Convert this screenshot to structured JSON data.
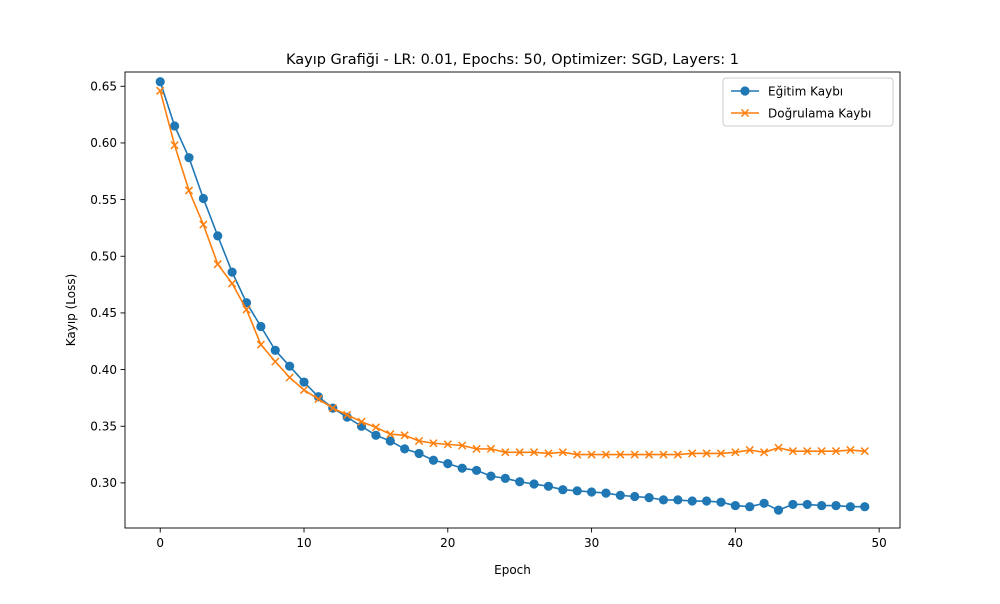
{
  "chart_data": {
    "type": "line",
    "title": "Kayıp Grafiği - LR: 0.01, Epochs: 50, Optimizer: SGD, Layers: 1",
    "xlabel": "Epoch",
    "ylabel": "Kayıp (Loss)",
    "xlim": [
      -2.45,
      51.45
    ],
    "ylim": [
      0.2602,
      0.6626
    ],
    "x_ticks": [
      "0",
      "10",
      "20",
      "30",
      "40",
      "50"
    ],
    "x_tick_values": [
      0,
      10,
      20,
      30,
      40,
      50
    ],
    "y_ticks": [
      "0.30",
      "0.35",
      "0.40",
      "0.45",
      "0.50",
      "0.55",
      "0.60",
      "0.65"
    ],
    "y_tick_values": [
      0.3,
      0.35,
      0.4,
      0.45,
      0.5,
      0.55,
      0.6,
      0.65
    ],
    "grid": false,
    "legend_position": "top-right",
    "x": [
      0,
      1,
      2,
      3,
      4,
      5,
      6,
      7,
      8,
      9,
      10,
      11,
      12,
      13,
      14,
      15,
      16,
      17,
      18,
      19,
      20,
      21,
      22,
      23,
      24,
      25,
      26,
      27,
      28,
      29,
      30,
      31,
      32,
      33,
      34,
      35,
      36,
      37,
      38,
      39,
      40,
      41,
      42,
      43,
      44,
      45,
      46,
      47,
      48,
      49
    ],
    "series": [
      {
        "name": "Eğitim Kaybı",
        "color": "#1f77b4",
        "marker": "circle",
        "values": [
          0.654,
          0.615,
          0.587,
          0.551,
          0.518,
          0.486,
          0.459,
          0.438,
          0.417,
          0.403,
          0.389,
          0.376,
          0.366,
          0.358,
          0.35,
          0.342,
          0.337,
          0.33,
          0.326,
          0.32,
          0.317,
          0.313,
          0.311,
          0.306,
          0.304,
          0.301,
          0.299,
          0.297,
          0.294,
          0.293,
          0.292,
          0.291,
          0.289,
          0.288,
          0.287,
          0.285,
          0.285,
          0.284,
          0.284,
          0.283,
          0.28,
          0.279,
          0.282,
          0.276,
          0.281,
          0.281,
          0.28,
          0.28,
          0.279,
          0.279
        ]
      },
      {
        "name": "Doğrulama Kaybı",
        "color": "#ff7f0e",
        "marker": "x",
        "values": [
          0.646,
          0.598,
          0.558,
          0.528,
          0.493,
          0.476,
          0.453,
          0.422,
          0.407,
          0.393,
          0.382,
          0.374,
          0.366,
          0.36,
          0.354,
          0.349,
          0.343,
          0.342,
          0.337,
          0.335,
          0.334,
          0.333,
          0.33,
          0.33,
          0.327,
          0.327,
          0.327,
          0.326,
          0.327,
          0.325,
          0.325,
          0.325,
          0.325,
          0.325,
          0.325,
          0.325,
          0.325,
          0.326,
          0.326,
          0.326,
          0.327,
          0.329,
          0.327,
          0.331,
          0.328,
          0.328,
          0.328,
          0.328,
          0.329,
          0.328
        ]
      }
    ]
  }
}
